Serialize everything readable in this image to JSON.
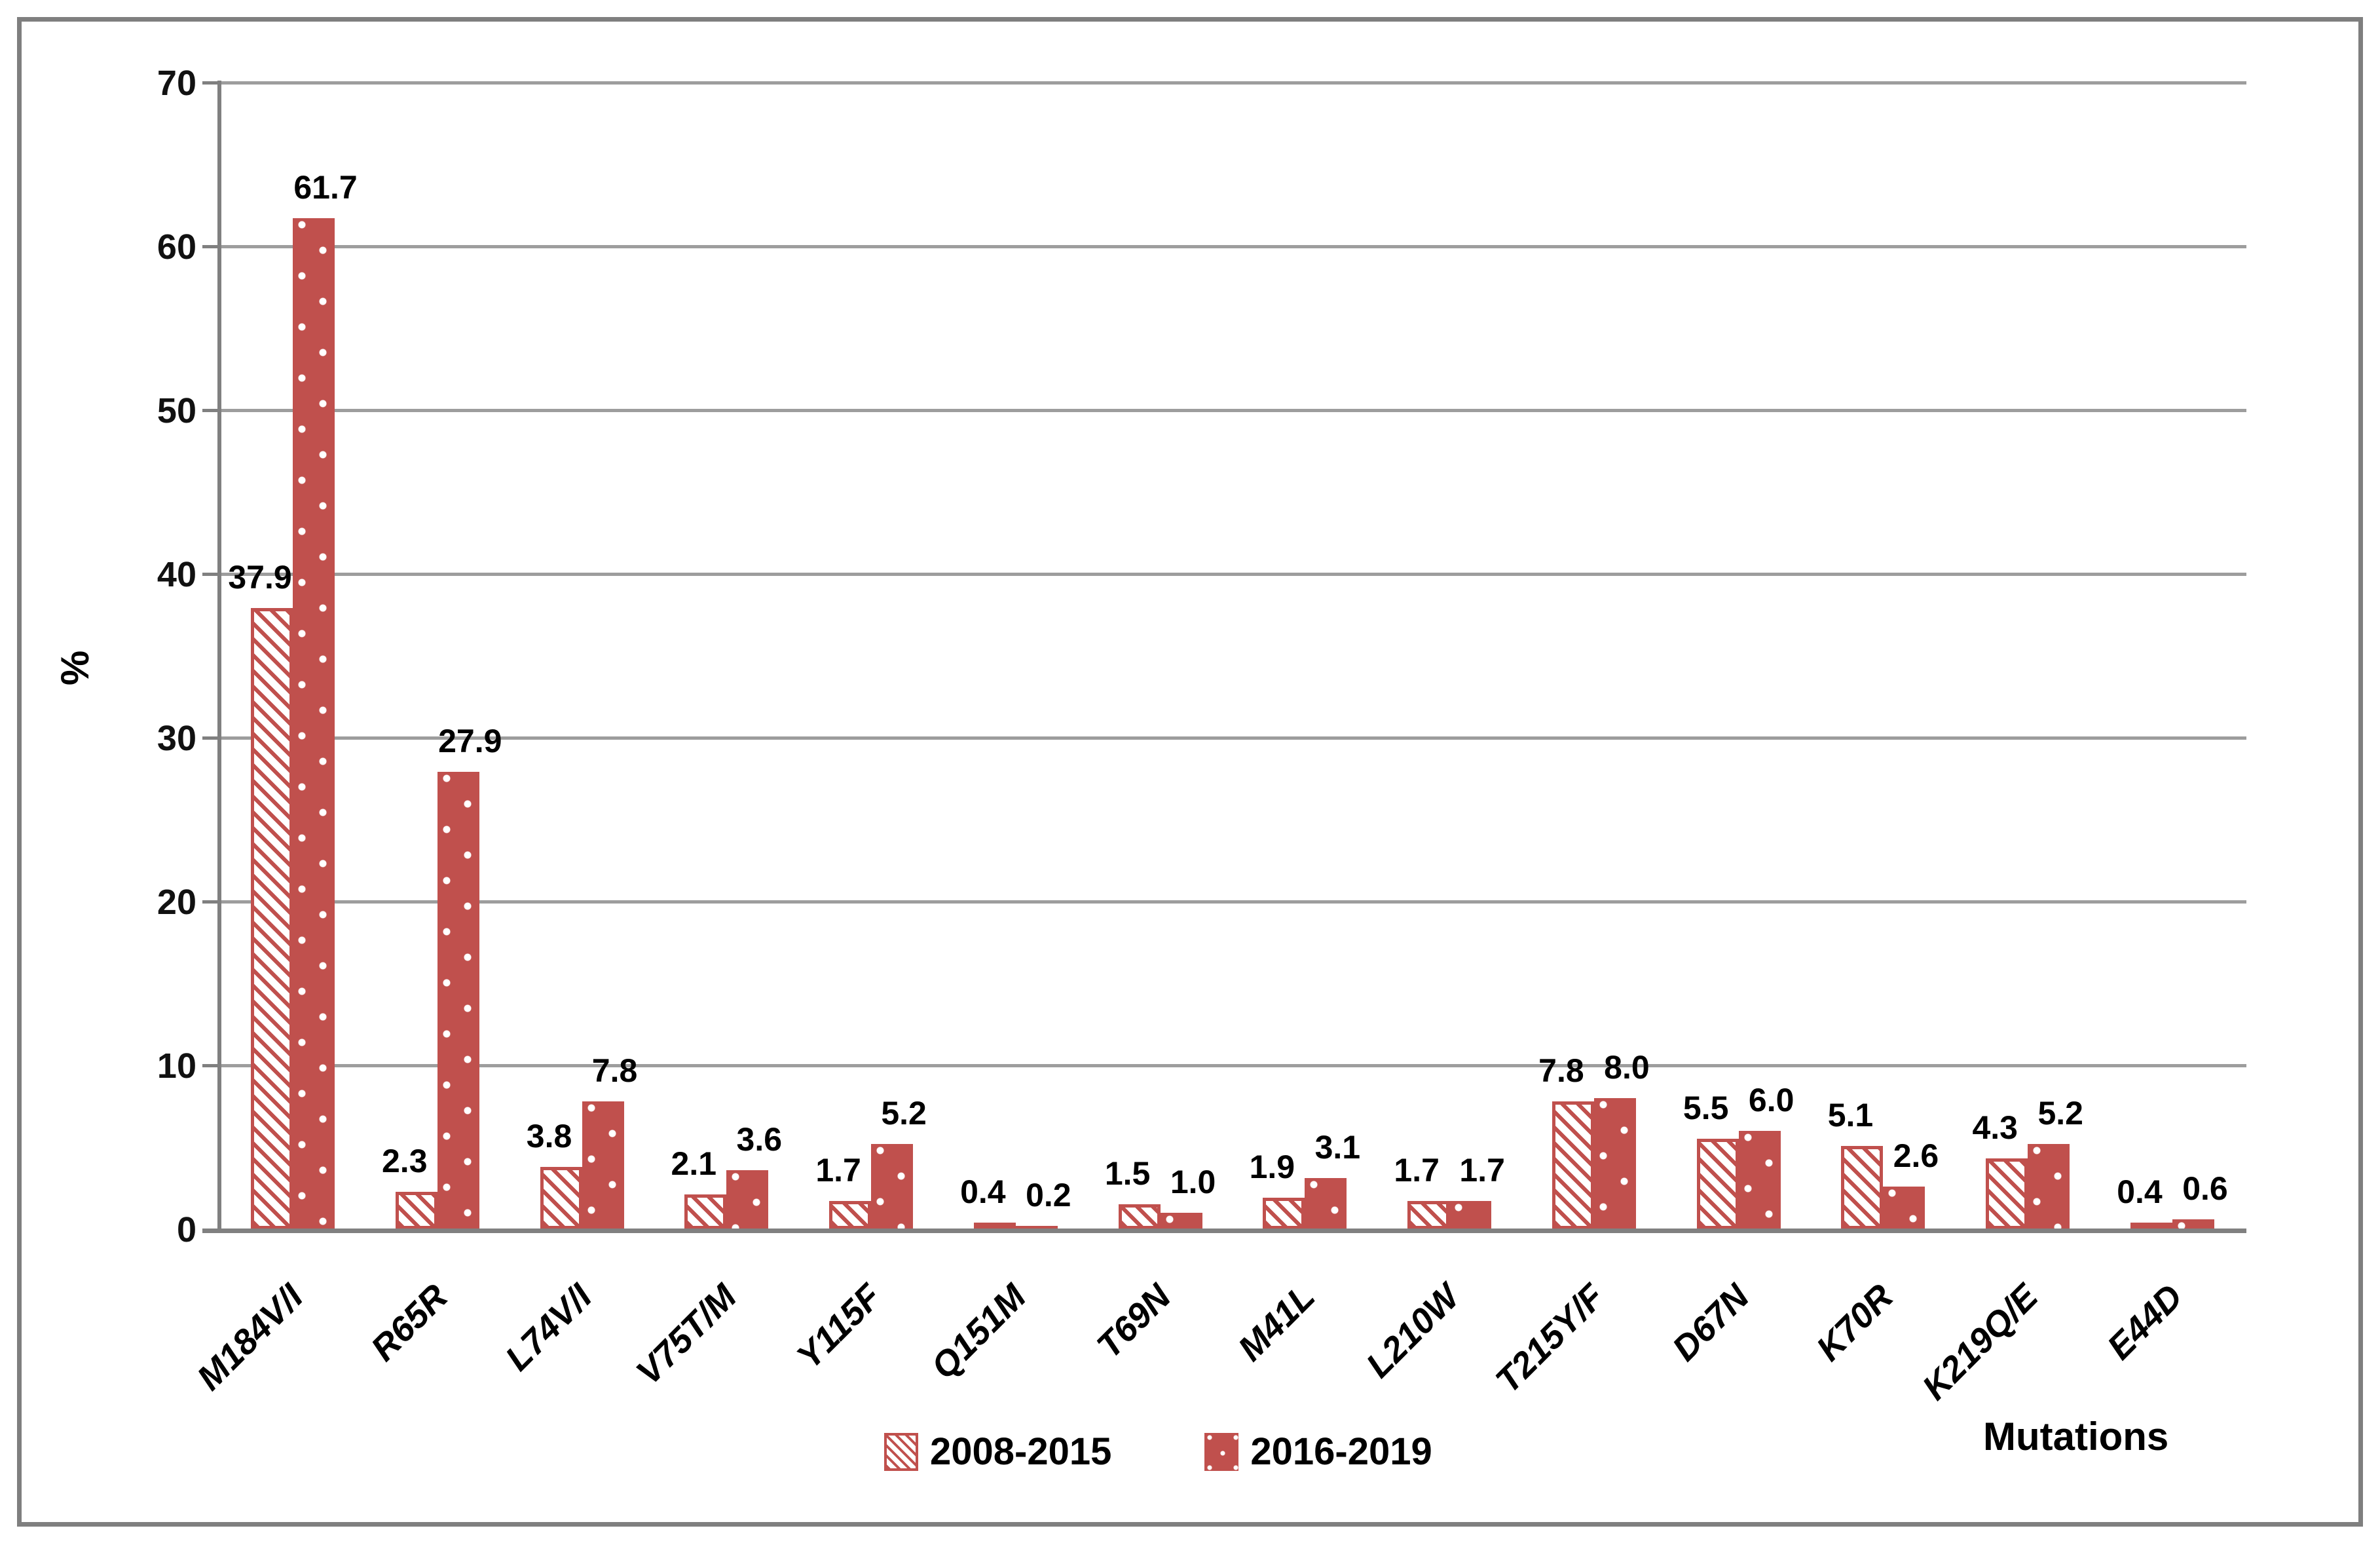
{
  "chart_data": {
    "type": "bar",
    "title": "",
    "ylabel": "%",
    "xlabel": "Mutations",
    "ylim": [
      0,
      70
    ],
    "yticks": [
      0,
      10,
      20,
      30,
      40,
      50,
      60,
      70
    ],
    "grid": true,
    "legend_position": "bottom-center",
    "categories": [
      "M184V/I",
      "R65R",
      "L74V/I",
      "V75T/M",
      "Y115F",
      "Q151M",
      "T69N",
      "M41L",
      "L210W",
      "T215Y/F",
      "D67N",
      "K70R",
      "K219Q/E",
      "E44D"
    ],
    "series": [
      {
        "name": "2008-2015",
        "pattern": "diagonal-hatch",
        "values": [
          37.9,
          2.3,
          3.8,
          2.1,
          1.7,
          0.4,
          1.5,
          1.9,
          1.7,
          7.8,
          5.5,
          5.1,
          4.3,
          0.4
        ]
      },
      {
        "name": "2016-2019",
        "pattern": "white-dots-on-solid",
        "values": [
          61.7,
          27.9,
          7.8,
          3.6,
          5.2,
          0.2,
          1.0,
          3.1,
          1.7,
          8.0,
          6.0,
          2.6,
          5.2,
          0.6
        ]
      }
    ],
    "value_label_decimals": 1
  },
  "colors": {
    "bar_red": "#c0504d",
    "gridline": "#9d9d9d",
    "axis": "#808080",
    "frame_border": "#7f7f7f",
    "text": "#000000",
    "background": "#ffffff"
  }
}
